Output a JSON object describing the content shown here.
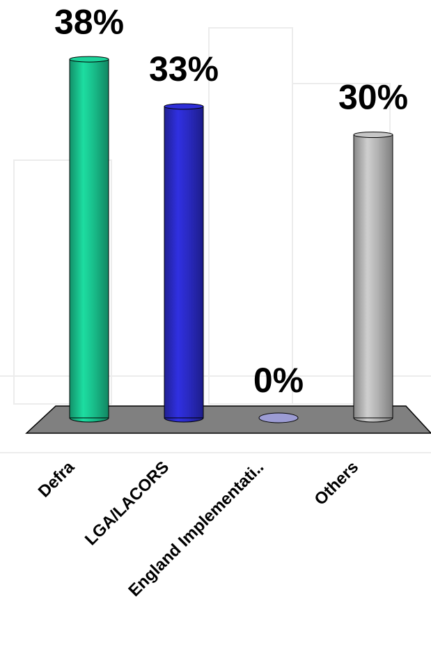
{
  "chart_data": {
    "type": "bar",
    "categories": [
      "Defra",
      "LGA/LACORS",
      "England Implementati..",
      "Others"
    ],
    "values": [
      38,
      33,
      0,
      30
    ],
    "value_labels": [
      "38%",
      "33%",
      "0%",
      "30%"
    ],
    "colors": [
      "#19c08c",
      "#2a2ac4",
      "#9c9cd4",
      "#b4b4b4"
    ]
  }
}
